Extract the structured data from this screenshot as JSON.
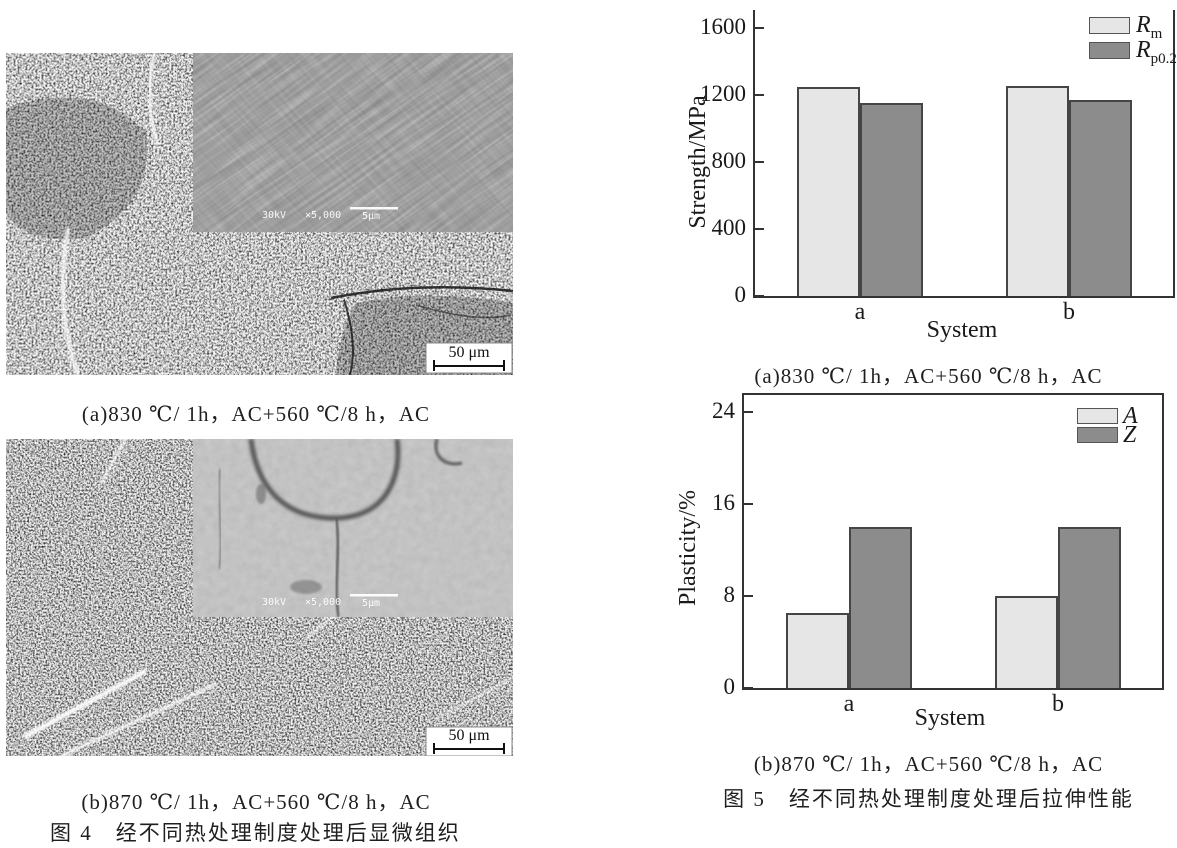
{
  "figure4": {
    "caption_a": "(a)830 ℃/ 1h，AC+560 ℃/8 h，AC",
    "caption_b": "(b)870 ℃/ 1h，AC+560 ℃/8 h，AC",
    "title": "图 4　经不同热处理制度处理后显微组织",
    "micrographs": [
      {
        "scale_bar": "50 μm",
        "inset": {
          "kv": "30kV",
          "mag": "×5,000",
          "scale": "5μm"
        }
      },
      {
        "scale_bar": "50 μm",
        "inset": {
          "kv": "30kV",
          "mag": "×5,000",
          "scale": "5μm"
        }
      }
    ]
  },
  "figure5": {
    "caption_a": "(a)830 ℃/ 1h，AC+560 ℃/8 h，AC",
    "caption_b": "(b)870 ℃/ 1h，AC+560 ℃/8 h，AC",
    "title": "图 5　经不同热处理制度处理后拉伸性能"
  },
  "colors": {
    "bar_light": "#e6e6e6",
    "bar_dark": "#8c8c8c",
    "bar_border": "#454545",
    "spine": "#333333"
  },
  "chart_data": [
    {
      "type": "bar",
      "categories": [
        "a",
        "b"
      ],
      "series": [
        {
          "name": "Rm",
          "legend_base": "R",
          "legend_sub": "m",
          "color": "#e6e6e6",
          "values": [
            1245,
            1255
          ]
        },
        {
          "name": "Rp02",
          "legend_base": "R",
          "legend_sub": "p0.2",
          "color": "#8c8c8c",
          "values": [
            1155,
            1170
          ]
        }
      ],
      "title": "",
      "xlabel": "System",
      "ylabel": "Strength/MPa",
      "ylim": [
        0,
        1600
      ],
      "yticks": [
        0,
        400,
        800,
        1200,
        1600
      ],
      "grid": false,
      "legend_position": "upper right"
    },
    {
      "type": "bar",
      "categories": [
        "a",
        "b"
      ],
      "series": [
        {
          "name": "A",
          "legend_base": "A",
          "legend_sub": "",
          "color": "#e6e6e6",
          "values": [
            6.5,
            8
          ]
        },
        {
          "name": "Z",
          "legend_base": "Z",
          "legend_sub": "",
          "color": "#8c8c8c",
          "values": [
            14,
            14
          ]
        }
      ],
      "title": "",
      "xlabel": "System",
      "ylabel": "Plasticity/%",
      "ylim": [
        0,
        24
      ],
      "yticks": [
        0,
        8,
        16,
        24
      ],
      "grid": false,
      "legend_position": "upper right"
    }
  ]
}
